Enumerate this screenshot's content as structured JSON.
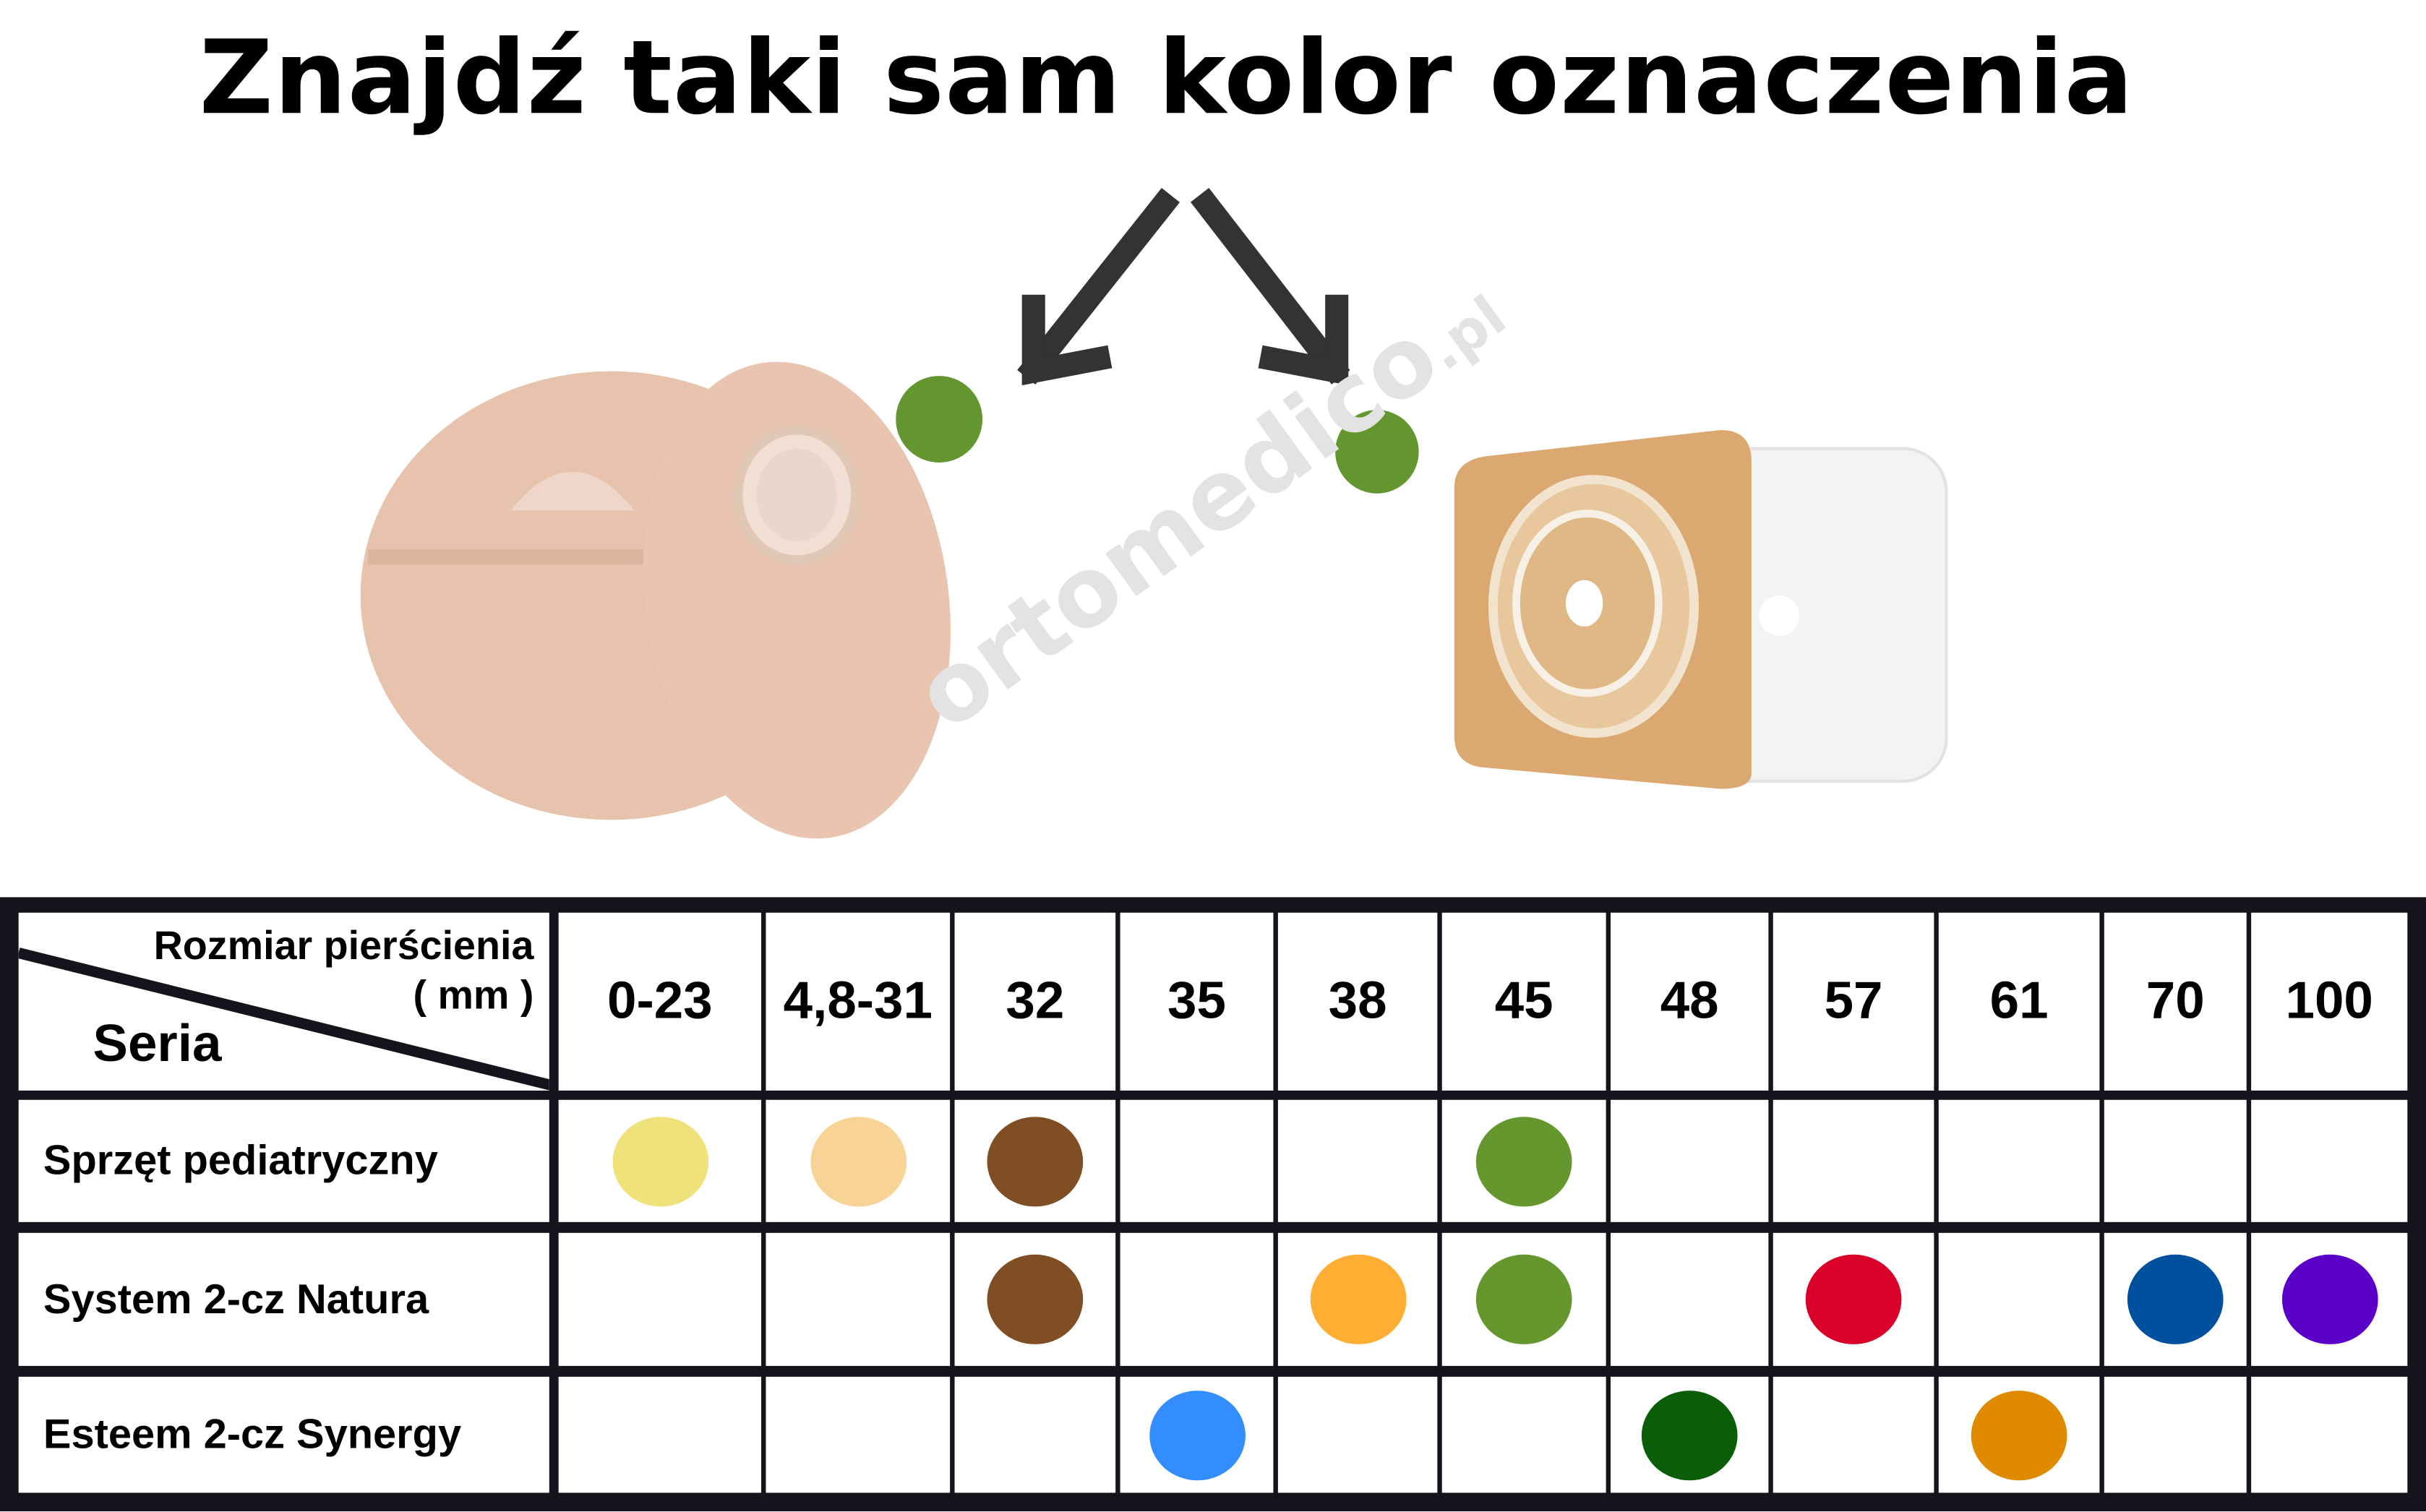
{
  "title": "Znajdź taki sam kolor oznaczenia",
  "watermark": {
    "main": "ortomedico",
    "suffix": ".pl"
  },
  "marker_color": "#63962e",
  "table": {
    "corner": {
      "size_label": "Rozmiar pierścienia",
      "unit": "( mm )",
      "series_label": "Seria"
    },
    "sizes": [
      "0-23",
      "4,8-31",
      "32",
      "35",
      "38",
      "45",
      "48",
      "57",
      "61",
      "70",
      "100"
    ],
    "rows": [
      {
        "series": "Sprzęt  pediatryczny",
        "colors": [
          "#efe27a",
          "#f7d496",
          "#7f4e24",
          null,
          null,
          "#66962e",
          null,
          null,
          null,
          null,
          null
        ]
      },
      {
        "series": "System 2-cz Natura",
        "colors": [
          null,
          null,
          "#7f4e24",
          null,
          "#ffad33",
          "#66962e",
          null,
          "#d9002a",
          null,
          "#0050a0",
          "#5a00c8"
        ]
      },
      {
        "series": "Esteem 2-cz Synergy",
        "colors": [
          null,
          null,
          null,
          "#338dff",
          null,
          null,
          "#0a5e08",
          null,
          "#e08a00",
          null,
          null
        ]
      }
    ]
  }
}
